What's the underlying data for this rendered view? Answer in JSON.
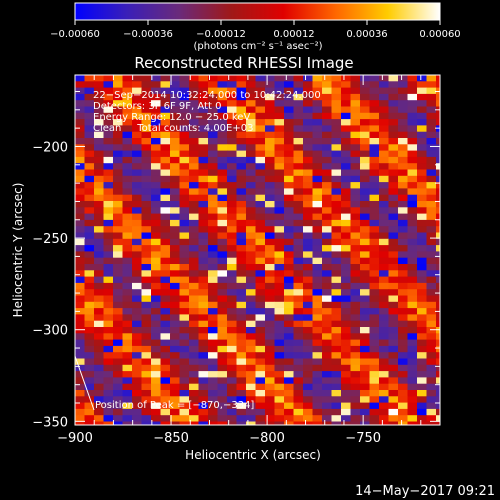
{
  "chart_data": {
    "type": "heatmap",
    "title": "Reconstructed RHESSI Image",
    "xlabel": "Heliocentric X (arcsec)",
    "ylabel": "Heliocentric Y (arcsec)",
    "xlim": [
      -900,
      -710
    ],
    "ylim": [
      -352,
      -161
    ],
    "x_ticks": [
      -900,
      -850,
      -800,
      -750
    ],
    "x_tick_labels": [
      "−900",
      "−850",
      "−800",
      "−750"
    ],
    "y_ticks": [
      -350,
      -300,
      -250,
      -200
    ],
    "y_tick_labels": [
      "−350",
      "−300",
      "−250",
      "−200"
    ],
    "colorbar": {
      "range": [
        -0.0006,
        0.0006
      ],
      "ticks": [
        -0.0006,
        -0.00036,
        -0.00012,
        0.00012,
        0.00036,
        0.0006
      ],
      "tick_labels": [
        "−0.00060",
        "−0.00036",
        "−0.00012",
        "0.00012",
        "0.00036",
        "0.00060"
      ],
      "units_label": "(photons cm⁻² s⁻¹ asec⁻²)",
      "colormap": [
        "#0000ff",
        "#3a1fb8",
        "#6a2a7a",
        "#a01818",
        "#e00000",
        "#ff6600",
        "#ffcc00",
        "#ffffff"
      ]
    },
    "grid": false,
    "legend": "none"
  },
  "annotations": {
    "time_range": "22−Sep−2014 10:32:24.000 to 10:42:24.000",
    "detectors": "Detectors: 3F 6F 9F, Att 0",
    "energy_range": "Energy Range: 12.0 − 25.0 keV",
    "clean_counts": "Clean     Total counts: 4.00E+03",
    "peak": "Position of Peak = [−870,−334]"
  },
  "footer": {
    "timestamp": "14−May−2017 09:21"
  }
}
